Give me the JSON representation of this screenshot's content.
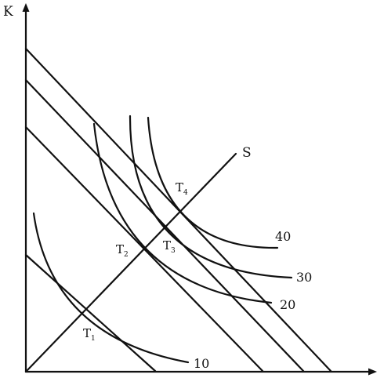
{
  "axes": {
    "y_label": "K"
  },
  "expansion_path": {
    "label": "S"
  },
  "isoquants": [
    {
      "label": "10"
    },
    {
      "label": "20"
    },
    {
      "label": "30"
    },
    {
      "label": "40"
    }
  ],
  "tangency_points": [
    {
      "letter": "T",
      "sub": "1"
    },
    {
      "letter": "T",
      "sub": "2"
    },
    {
      "letter": "T",
      "sub": "3"
    },
    {
      "letter": "T",
      "sub": "4"
    }
  ],
  "colors": {
    "ink": "#111111",
    "background": "#ffffff"
  }
}
